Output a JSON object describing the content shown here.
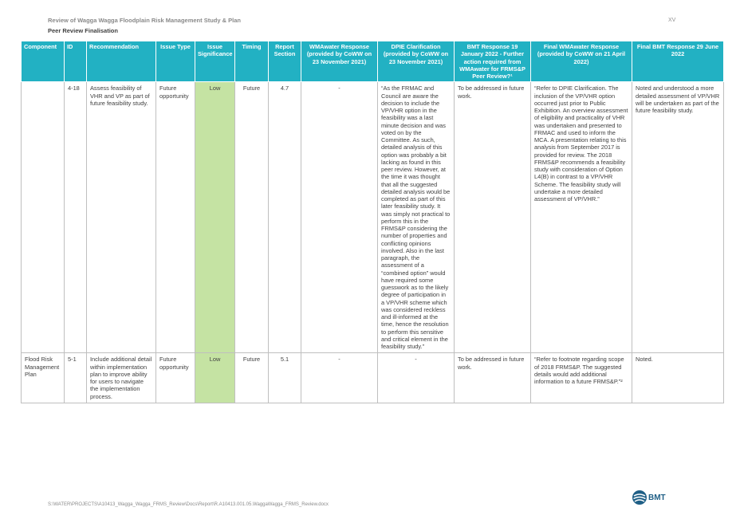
{
  "header": {
    "doc_title": "Review of Wagga Wagga Floodplain Risk Management Study & Plan",
    "section_title": "Peer Review Finalisation",
    "page_number": "XV"
  },
  "table": {
    "columns": [
      "Component",
      "ID",
      "Recommendation",
      "Issue Type",
      "Issue Significance",
      "Timing",
      "Report Section",
      "WMAwater Response (provided by CoWW on 23 November 2021)",
      "DPIE Clarification (provided by CoWW on 23 November 2021)",
      "BMT Response 19 January 2022 - Further action required from WMAwater for FRMS&P Peer Review?¹",
      "Final WMAwater Response (provided by CoWW on 21 April 2022)",
      "Final BMT Response 29 June 2022"
    ],
    "rows": [
      {
        "component": "",
        "id": "4-18",
        "recommendation": "Assess feasibility of VHR and VP as part of future feasibility study.",
        "issue_type": "Future opportunity",
        "issue_significance": "Low",
        "timing": "Future",
        "report_section": "4.7",
        "wmawater_response": "-",
        "dpie_clarification": "“As the FRMAC and Council are aware the decision to include the VP/VHR option in the feasibility was a last minute decision and was voted on by the Committee. As such, detailed analysis of this option was probably a bit lacking as found in this peer review. However, at the time it was thought that all the suggested detailed analysis would be completed as part of this later feasibility study. It was simply not practical to perform this in the FRMS&P considering the number of properties and conflicting opinions involved. Also in the last paragraph, the assessment of a “combined option” would have required some guesswork as to the likely degree of participation in a VP/VHR scheme which was considered reckless and ill-informed at the time, hence the resolution to perform this sensitive and critical element in the feasibility study.”",
        "bmt_response": "To be addressed in future work.",
        "final_wmawater_response": "“Refer to DPIE Clarification. The inclusion of the VP/VHR option occurred just prior to Public Exhibition. An overview assessment of eligibility and practicality of VHR was undertaken and presented to FRMAC and used to inform the MCA. A presentation relating to this analysis from September 2017 is provided for review. The 2018 FRMS&P recommends a feasibility study with consideration of Option L4(B) in contrast to a VP/VHR Scheme. The feasibility study will undertake a more detailed assessment of VP/VHR.”",
        "final_bmt_response": "Noted and understood a more detailed assessment of VP/VHR will be undertaken as part of the future feasibility study."
      },
      {
        "component": "Flood Risk Management Plan",
        "id": "5-1",
        "recommendation": "Include additional detail within implementation plan to improve ability for users to navigate the implementation process.",
        "issue_type": "Future opportunity",
        "issue_significance": "Low",
        "timing": "Future",
        "report_section": "5.1",
        "wmawater_response": "-",
        "dpie_clarification": "-",
        "bmt_response": "To be addressed in future work.",
        "final_wmawater_response": "“Refer to footnote regarding scope of 2018 FRMS&P. The suggested details would add additional information to a future FRMS&P.”²",
        "final_bmt_response": "Noted."
      }
    ]
  },
  "footer": {
    "path": "S:\\WATER\\PROJECTS\\A10413_Wagga_Wagga_FRMS_Review\\Docs\\Report\\R.A10413.001.05.WaggaWagga_FRMS_Review.docx",
    "logo_text": "BMT",
    "logo_icon": "bmt-globe-icon",
    "logo_color": "#1f5f86"
  },
  "colors": {
    "header_bg": "#22b1c3",
    "significance_bg": "#c5e3a3",
    "significance_text": "#3f7d20"
  }
}
